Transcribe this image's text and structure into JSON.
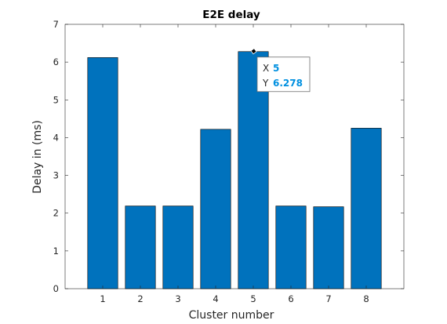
{
  "chart_data": {
    "type": "bar",
    "title": "E2E delay",
    "xlabel": "Cluster number",
    "ylabel": "Delay in (ms)",
    "categories": [
      "1",
      "2",
      "3",
      "4",
      "5",
      "6",
      "7",
      "8"
    ],
    "values": [
      6.12,
      2.19,
      2.19,
      4.22,
      6.278,
      2.19,
      2.17,
      4.25
    ],
    "xlim": [
      0,
      9
    ],
    "ylim": [
      0,
      7
    ],
    "yticks": [
      "0",
      "1",
      "2",
      "3",
      "4",
      "5",
      "6",
      "7"
    ],
    "grid": false,
    "colors": {
      "bar": "#0072BD",
      "bar_edge": "#000000",
      "axis": "#262626",
      "datatip_value": "#0090E0"
    },
    "datatip": {
      "x_label": "X",
      "x_value": "5",
      "y_label": "Y",
      "y_value": "6.278"
    }
  }
}
